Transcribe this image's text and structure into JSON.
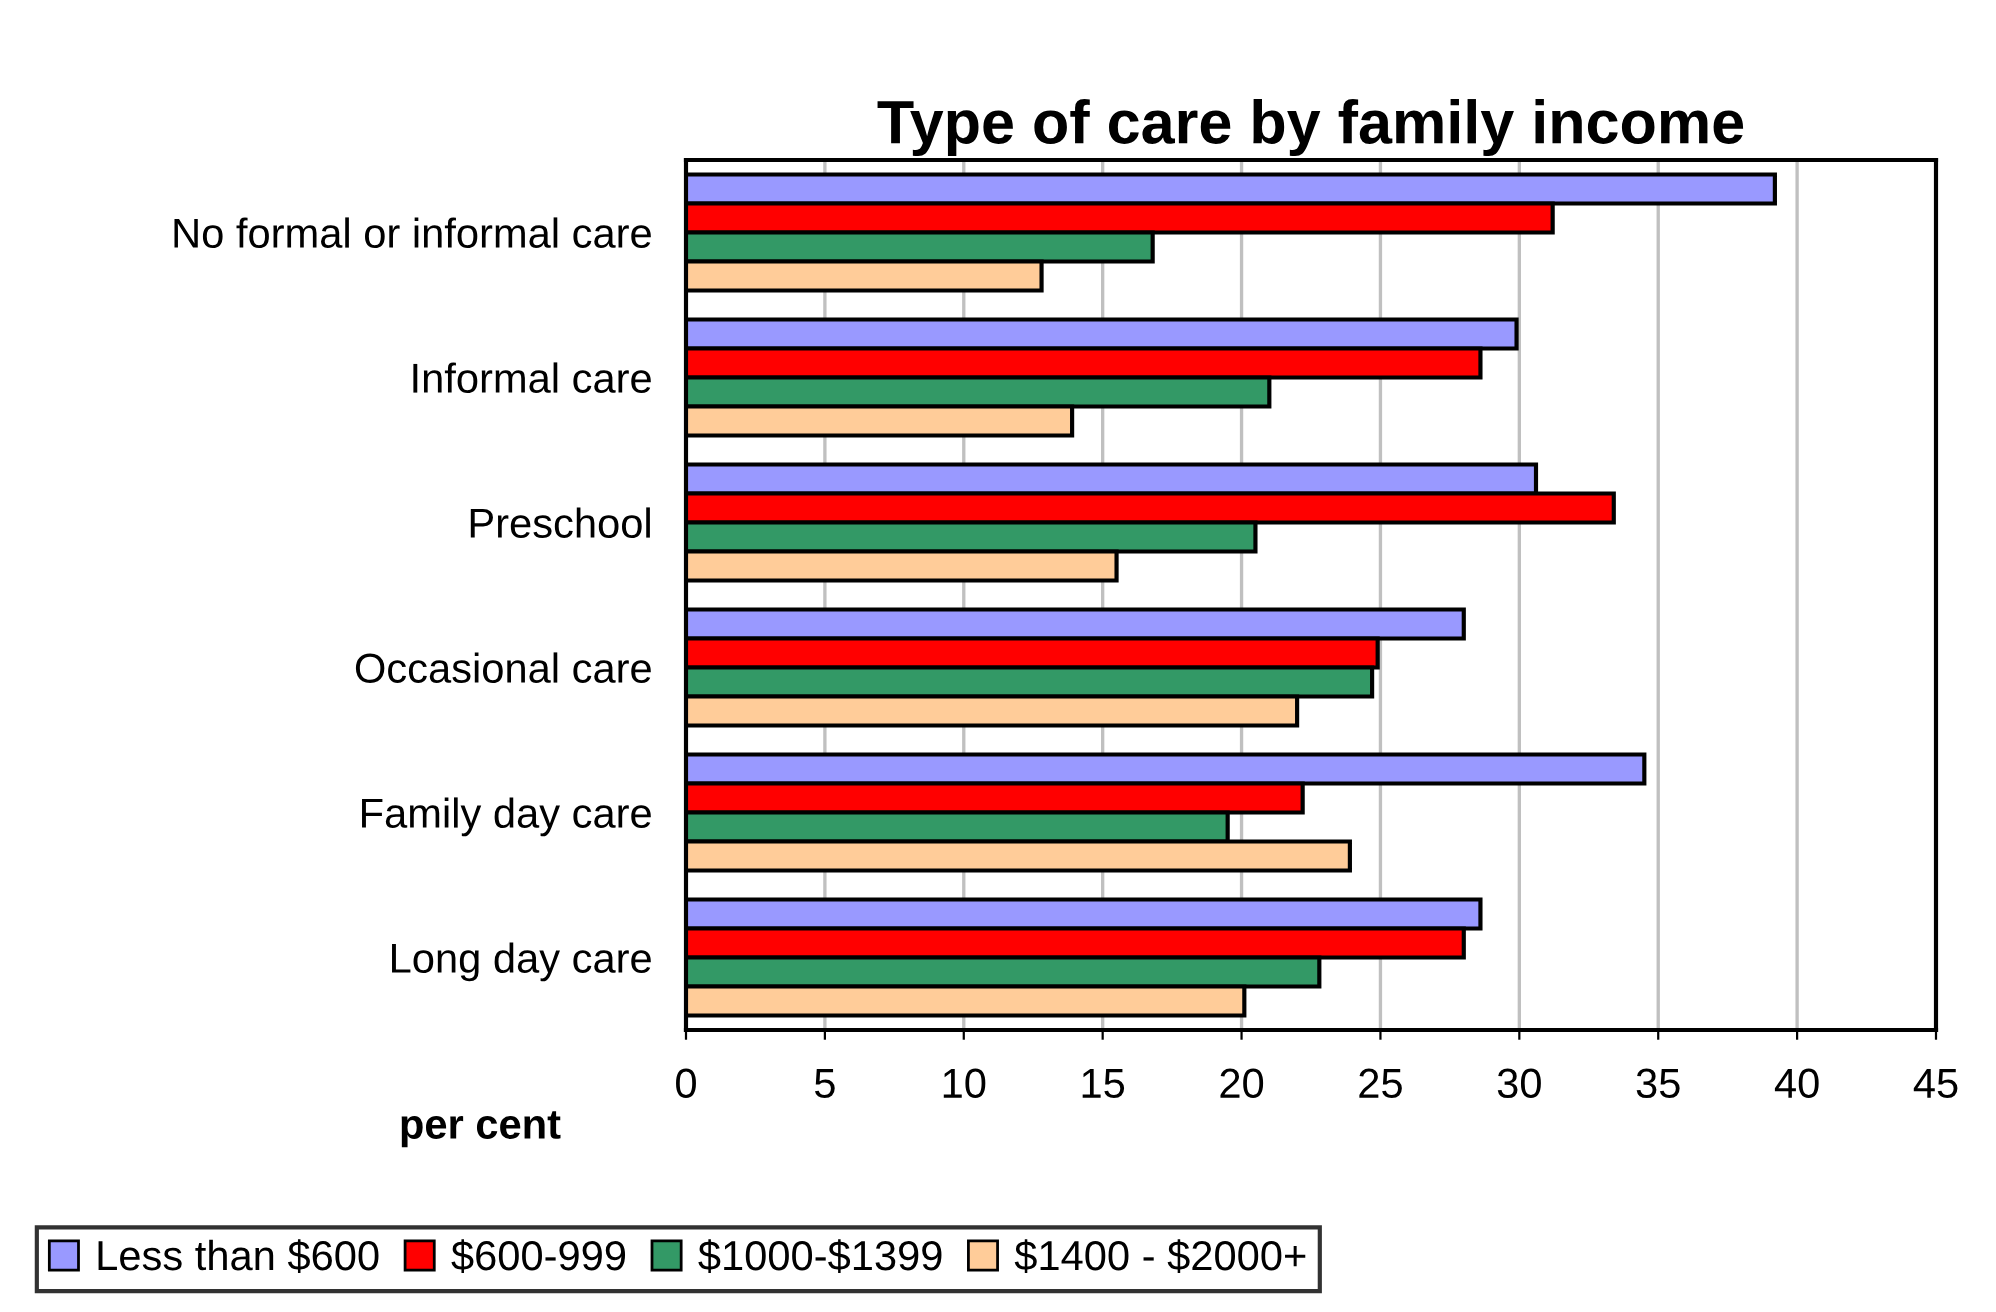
{
  "chart_data": {
    "type": "bar",
    "orientation": "horizontal",
    "title": "Type of care by family income",
    "xlabel": "per cent",
    "categories": [
      "No formal or informal care",
      "Informal care",
      "Preschool",
      "Occasional care",
      "Family day care",
      "Long day care"
    ],
    "series": [
      {
        "name": "Less than $600",
        "color": "#9999ff",
        "values": [
          39.2,
          29.9,
          30.6,
          28.0,
          34.5,
          28.6
        ]
      },
      {
        "name": "$600-999",
        "color": "#ff0000",
        "values": [
          31.2,
          28.6,
          33.4,
          24.9,
          22.2,
          28.0
        ]
      },
      {
        "name": "$1000-$1399",
        "color": "#339966",
        "values": [
          16.8,
          21.0,
          20.5,
          24.7,
          19.5,
          22.8
        ]
      },
      {
        "name": "$1400 - $2000+",
        "color": "#ffcc99",
        "values": [
          12.8,
          13.9,
          15.5,
          22.0,
          23.9,
          20.1
        ]
      }
    ],
    "xlim": [
      0,
      45
    ],
    "xticks": [
      0,
      5,
      10,
      15,
      20,
      25,
      30,
      35,
      40,
      45
    ],
    "grid": "x",
    "legend": "bottom"
  }
}
